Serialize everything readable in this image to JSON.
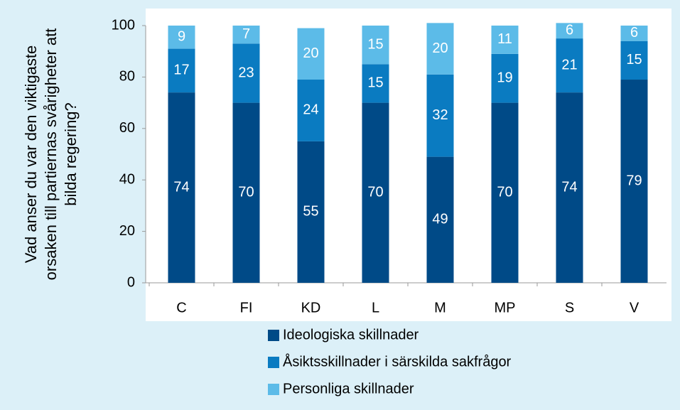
{
  "chart_data": {
    "type": "stacked-bar",
    "ylabel": [
      "Vad anser du var den viktigaste",
      "orsaken till partiernas svårigheter att",
      "bilda regering?"
    ],
    "categories": [
      "C",
      "FI",
      "KD",
      "L",
      "M",
      "MP",
      "S",
      "V"
    ],
    "series": [
      {
        "name": "Ideologiska skillnader",
        "color": "#004a87",
        "values": [
          74,
          70,
          55,
          70,
          49,
          70,
          74,
          79
        ]
      },
      {
        "name": "Åsiktsskillnader i särskilda sakfrågor",
        "color": "#0a7bc1",
        "values": [
          17,
          23,
          24,
          15,
          32,
          19,
          21,
          15
        ]
      },
      {
        "name": "Personliga skillnader",
        "color": "#5cbbe8",
        "values": [
          9,
          7,
          20,
          15,
          20,
          11,
          6,
          6
        ]
      }
    ],
    "ylim": [
      0,
      100
    ],
    "yticks": [
      0,
      20,
      40,
      60,
      80,
      100
    ],
    "grid": false,
    "legend": "bottom"
  }
}
